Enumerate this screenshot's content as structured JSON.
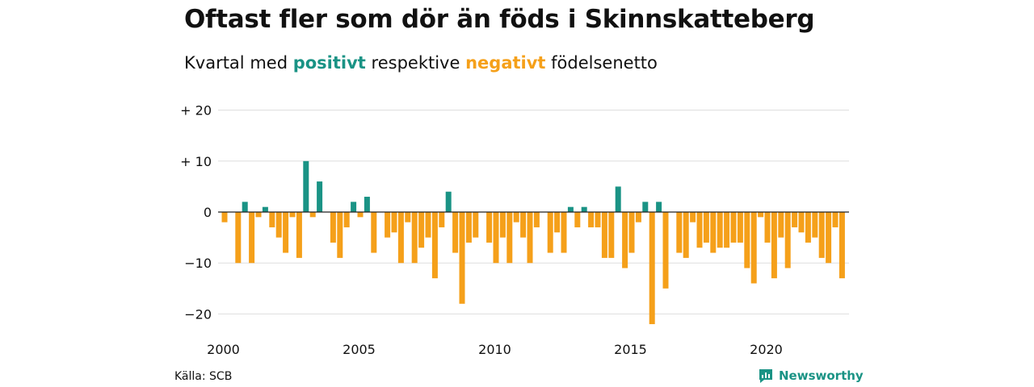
{
  "title": "Oftast fler som dör än föds i Skinnskatteberg",
  "subtitle": {
    "prefix": "Kvartal med",
    "positive": "positivt",
    "middle": "respektive",
    "negative": "negativt",
    "suffix": "födelsenetto"
  },
  "source": "Källa: SCB",
  "brand": "Newsworthy",
  "colors": {
    "positive": "#1a9385",
    "negative": "#f5a01a",
    "grid": "#dddddd",
    "zero": "#222222"
  },
  "chart_data": {
    "type": "bar",
    "ylim": [
      -24,
      20
    ],
    "yticks": [
      20,
      10,
      0,
      -10,
      -20
    ],
    "ytick_labels": [
      "+ 20",
      "+ 10",
      "0",
      "−10",
      "−20"
    ],
    "xticks": [
      2000,
      2005,
      2010,
      2015,
      2020
    ],
    "xtick_labels": [
      "2000",
      "2005",
      "2010",
      "2015",
      "2020"
    ],
    "x_start": 2000,
    "periods_per_year": 4,
    "values": [
      -2,
      0,
      -10,
      2,
      -10,
      -1,
      1,
      -3,
      -5,
      -8,
      -1,
      -9,
      10,
      -1,
      6,
      0,
      -6,
      -9,
      -3,
      2,
      -1,
      3,
      -8,
      0,
      -5,
      -4,
      -10,
      -2,
      -10,
      -7,
      -5,
      -13,
      -3,
      4,
      -8,
      -18,
      -6,
      -5,
      0,
      -6,
      -10,
      -5,
      -10,
      -2,
      -5,
      -10,
      -3,
      0,
      -8,
      -4,
      -8,
      1,
      -3,
      1,
      -3,
      -3,
      -9,
      -9,
      5,
      -11,
      -8,
      -2,
      2,
      -22,
      2,
      -15,
      0,
      -8,
      -9,
      -2,
      -7,
      -6,
      -8,
      -7,
      -7,
      -6,
      -6,
      -11,
      -14,
      -1,
      -6,
      -13,
      -5,
      -11,
      -3,
      -4,
      -6,
      -5,
      -9,
      -10,
      -3,
      -13
    ]
  }
}
